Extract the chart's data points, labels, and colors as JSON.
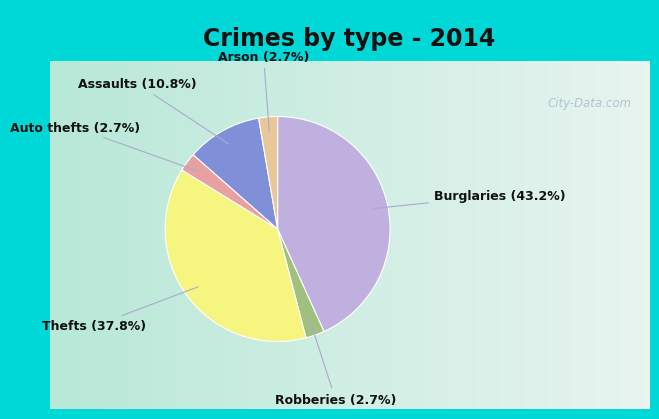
{
  "title": "Crimes by type - 2014",
  "slices": [
    {
      "label": "Burglaries (43.2%)",
      "value": 43.2,
      "color": "#c0b0e0"
    },
    {
      "label": "Robberies (2.7%)",
      "value": 2.7,
      "color": "#a0c080"
    },
    {
      "label": "Thefts (37.8%)",
      "value": 37.8,
      "color": "#f5f580"
    },
    {
      "label": "Auto thefts (2.7%)",
      "value": 2.7,
      "color": "#e8a0a0"
    },
    {
      "label": "Assaults (10.8%)",
      "value": 10.8,
      "color": "#8090d8"
    },
    {
      "label": "Arson (2.7%)",
      "value": 2.7,
      "color": "#e8c898"
    }
  ],
  "background_color_top": "#00d8d8",
  "background_color_main_left": "#b8e8d8",
  "background_color_main_right": "#e8f4f0",
  "title_fontsize": 17,
  "label_fontsize": 9,
  "watermark": "City-Data.com"
}
